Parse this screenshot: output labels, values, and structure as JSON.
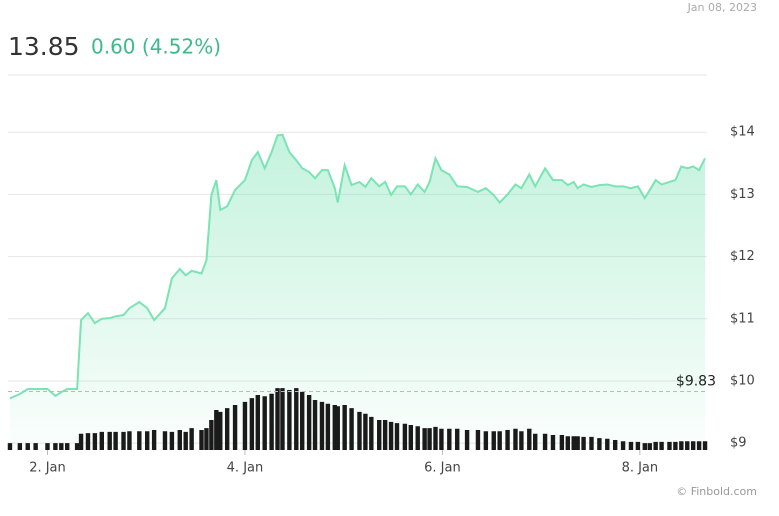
{
  "header": {
    "date": "Jan 08, 2023",
    "price": "13.85",
    "change": "0.60 (4.52%)"
  },
  "chart_data": {
    "type": "area",
    "xlim": [
      1.6,
      8.68
    ],
    "xticks": [
      {
        "value": 2,
        "label": "2. Jan"
      },
      {
        "value": 4,
        "label": "4. Jan"
      },
      {
        "value": 6,
        "label": "6. Jan"
      },
      {
        "value": 8,
        "label": "8. Jan"
      }
    ],
    "ylim": [
      8.89,
      14.92
    ],
    "yticks": [
      {
        "value": 9,
        "label": "$9"
      },
      {
        "value": 10,
        "label": "$10"
      },
      {
        "value": 11,
        "label": "$11"
      },
      {
        "value": 12,
        "label": "$12"
      },
      {
        "value": 13,
        "label": "$13"
      },
      {
        "value": 14,
        "label": "$14"
      }
    ],
    "y2lim": [
      0,
      600
    ],
    "grid": true,
    "reference": {
      "value": 9.83,
      "label": "$9.83"
    },
    "x": [
      1.62,
      1.72,
      1.8,
      1.88,
      2.0,
      2.08,
      2.14,
      2.2,
      2.3,
      2.34,
      2.41,
      2.48,
      2.55,
      2.63,
      2.69,
      2.77,
      2.83,
      2.93,
      3.01,
      3.08,
      3.19,
      3.26,
      3.34,
      3.4,
      3.46,
      3.56,
      3.61,
      3.66,
      3.71,
      3.75,
      3.82,
      3.9,
      4.0,
      4.07,
      4.13,
      4.2,
      4.27,
      4.33,
      4.38,
      4.45,
      4.52,
      4.58,
      4.65,
      4.71,
      4.78,
      4.84,
      4.91,
      4.94,
      5.01,
      5.08,
      5.16,
      5.22,
      5.28,
      5.36,
      5.42,
      5.48,
      5.54,
      5.62,
      5.68,
      5.75,
      5.82,
      5.87,
      5.93,
      5.99,
      6.07,
      6.15,
      6.25,
      6.36,
      6.44,
      6.52,
      6.58,
      6.66,
      6.74,
      6.8,
      6.88,
      6.94,
      7.04,
      7.12,
      7.21,
      7.27,
      7.33,
      7.37,
      7.43,
      7.51,
      7.59,
      7.67,
      7.75,
      7.83,
      7.91,
      7.98,
      8.05,
      8.1,
      8.16,
      8.22,
      8.3,
      8.36,
      8.42,
      8.48,
      8.54,
      8.6,
      8.66
    ],
    "series": [
      {
        "color": "#7be3b4",
        "values": [
          9.72,
          9.79,
          9.87,
          9.87,
          9.87,
          9.76,
          9.82,
          9.87,
          9.87,
          10.98,
          11.09,
          10.93,
          11.0,
          11.01,
          11.04,
          11.06,
          11.17,
          11.27,
          11.17,
          10.98,
          11.17,
          11.65,
          11.8,
          11.7,
          11.77,
          11.73,
          11.94,
          12.99,
          13.23,
          12.75,
          12.81,
          13.07,
          13.23,
          13.55,
          13.68,
          13.42,
          13.68,
          13.95,
          13.96,
          13.68,
          13.55,
          13.42,
          13.36,
          13.26,
          13.39,
          13.39,
          13.1,
          12.87,
          13.47,
          13.15,
          13.2,
          13.12,
          13.26,
          13.13,
          13.2,
          12.99,
          13.13,
          13.13,
          13.0,
          13.16,
          13.04,
          13.2,
          13.58,
          13.39,
          13.32,
          13.13,
          13.12,
          13.04,
          13.1,
          12.99,
          12.87,
          13.0,
          13.16,
          13.1,
          13.32,
          13.13,
          13.42,
          13.23,
          13.23,
          13.15,
          13.2,
          13.1,
          13.16,
          13.12,
          13.15,
          13.16,
          13.13,
          13.13,
          13.1,
          13.13,
          12.94,
          13.07,
          13.23,
          13.16,
          13.2,
          13.23,
          13.45,
          13.42,
          13.45,
          13.39,
          13.58
        ]
      },
      {
        "type": "bar",
        "axis": "y2",
        "color": "#1a1a1a",
        "values": [
          11,
          11,
          11,
          11,
          11,
          11,
          11,
          11,
          11,
          26,
          27,
          27,
          29,
          29,
          29,
          29,
          30,
          30,
          30,
          32,
          30,
          29,
          32,
          29,
          35,
          32,
          35,
          48,
          64,
          61,
          67,
          72,
          77,
          83,
          88,
          86,
          90,
          99,
          99,
          96,
          99,
          93,
          88,
          80,
          77,
          74,
          72,
          70,
          72,
          67,
          61,
          58,
          53,
          48,
          48,
          45,
          43,
          42,
          40,
          38,
          35,
          35,
          37,
          34,
          34,
          34,
          32,
          32,
          30,
          30,
          30,
          32,
          34,
          30,
          34,
          26,
          26,
          24,
          24,
          22,
          22,
          22,
          21,
          21,
          19,
          18,
          16,
          14,
          13,
          13,
          11,
          11,
          13,
          13,
          13,
          13,
          14,
          14,
          14,
          14,
          14
        ]
      }
    ],
    "footer": "© Finbold.com"
  }
}
